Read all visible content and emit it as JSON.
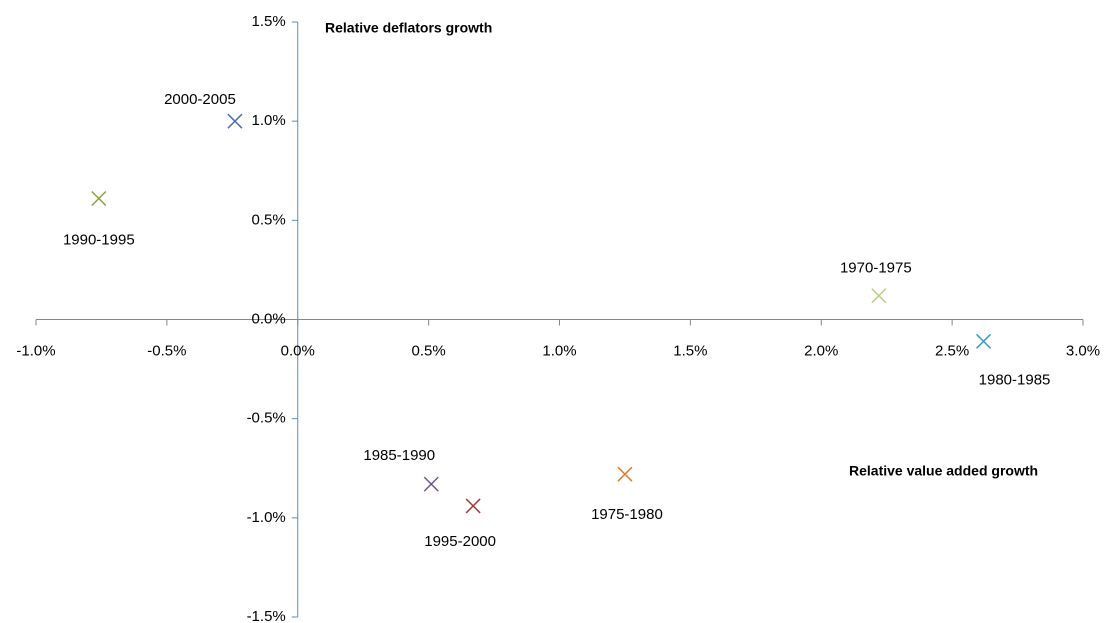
{
  "chart_data": {
    "type": "scatter",
    "xlabel": "Relative value added growth",
    "ylabel": "Relative deflators growth",
    "xlim": [
      -1.0,
      3.0
    ],
    "xticks": [
      {
        "value": -1.0,
        "label": "-1.0%"
      },
      {
        "value": -0.5,
        "label": "-0.5%"
      },
      {
        "value": 0.0,
        "label": "0.0%"
      },
      {
        "value": 0.5,
        "label": "0.5%"
      },
      {
        "value": 1.0,
        "label": "1.0%"
      },
      {
        "value": 1.5,
        "label": "1.5%"
      },
      {
        "value": 2.0,
        "label": "2.0%"
      },
      {
        "value": 2.5,
        "label": "2.5%"
      },
      {
        "value": 3.0,
        "label": "3.0%"
      }
    ],
    "ylim": [
      -1.5,
      1.5
    ],
    "yticks": [
      {
        "value": -1.5,
        "label": "-1.5%"
      },
      {
        "value": -1.0,
        "label": "-1.0%"
      },
      {
        "value": -0.5,
        "label": "-0.5%"
      },
      {
        "value": 0.0,
        "label": "0.0%"
      },
      {
        "value": 0.5,
        "label": "0.5%"
      },
      {
        "value": 1.0,
        "label": "1.0%"
      },
      {
        "value": 1.5,
        "label": "1.5%"
      }
    ],
    "series": [
      {
        "name": "1970-1975",
        "color": "#b3d389",
        "x": [
          2.22
        ],
        "values": [
          0.12
        ]
      },
      {
        "name": "1975-1980",
        "color": "#e07d2e",
        "x": [
          1.25
        ],
        "values": [
          -0.78
        ]
      },
      {
        "name": "1980-1985",
        "color": "#3d9dc2",
        "x": [
          2.62
        ],
        "values": [
          -0.11
        ]
      },
      {
        "name": "1985-1990",
        "color": "#6e5590",
        "x": [
          0.51
        ],
        "values": [
          -0.83
        ]
      },
      {
        "name": "1990-1995",
        "color": "#8da03a",
        "x": [
          -0.76
        ],
        "values": [
          0.61
        ]
      },
      {
        "name": "1995-2000",
        "color": "#a83a3a",
        "x": [
          0.67
        ],
        "values": [
          -0.94
        ]
      },
      {
        "name": "2000-2005",
        "color": "#4a6fb5",
        "x": [
          -0.24
        ],
        "values": [
          1.0
        ]
      }
    ]
  }
}
